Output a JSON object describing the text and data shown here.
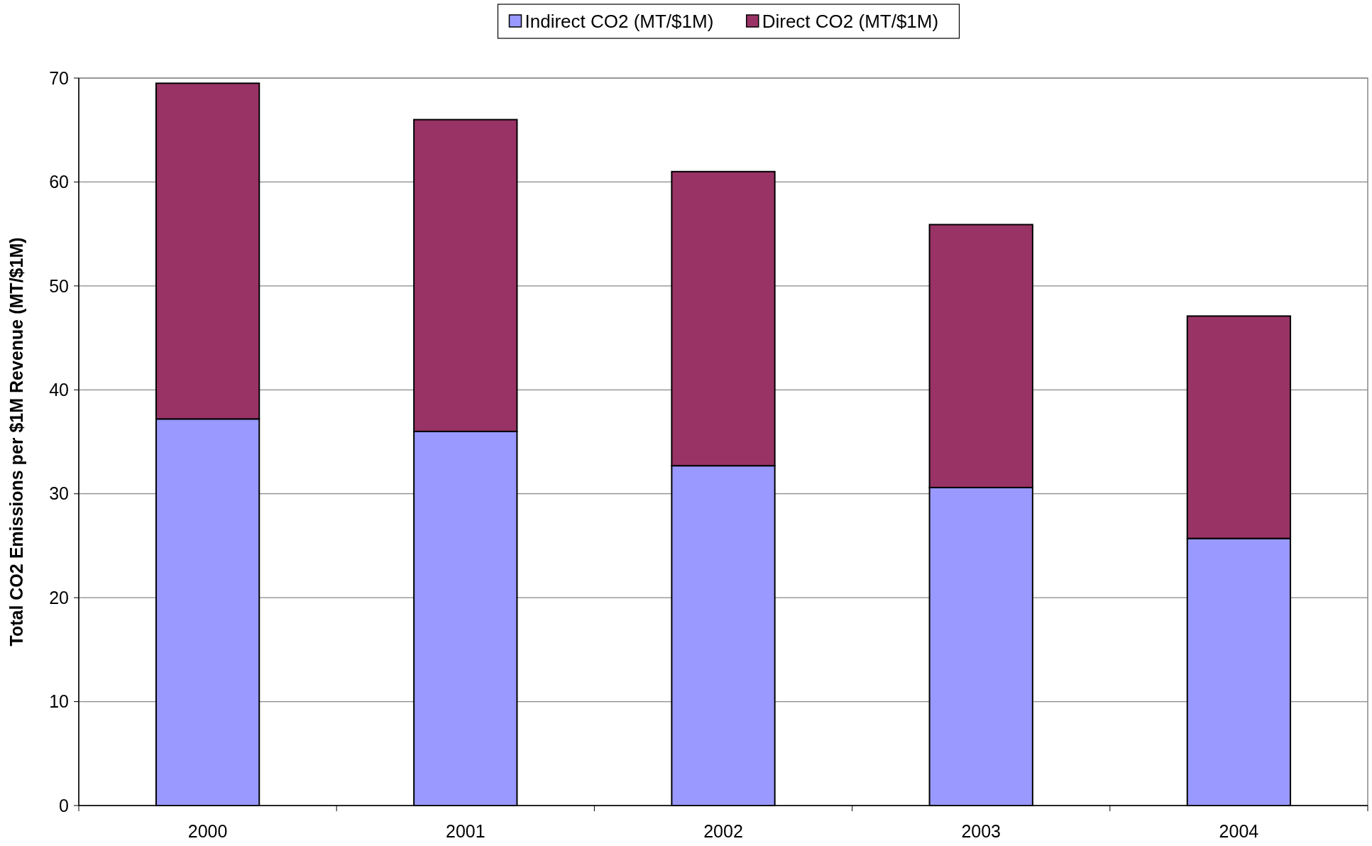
{
  "chart_data": {
    "type": "bar",
    "stacked": true,
    "ylabel": "Total CO2 Emissions per $1M Revenue (MT/$1M)",
    "categories": [
      "2000",
      "2001",
      "2002",
      "2003",
      "2004"
    ],
    "series": [
      {
        "name": "Indirect CO2 (MT/$1M)",
        "color": "#9999ff",
        "values": [
          37.2,
          36.0,
          32.7,
          30.6,
          25.7
        ]
      },
      {
        "name": "Direct CO2 (MT/$1M)",
        "color": "#993366",
        "values": [
          32.3,
          30.0,
          28.3,
          25.3,
          21.4
        ]
      }
    ],
    "ylim": [
      0,
      70
    ],
    "yticks": [
      0,
      10,
      20,
      30,
      40,
      50,
      60,
      70
    ],
    "grid": "y",
    "legend": "top"
  }
}
